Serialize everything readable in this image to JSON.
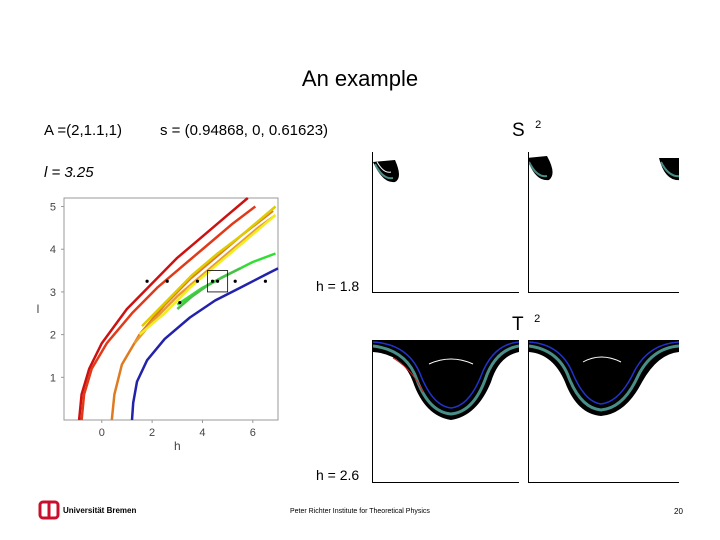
{
  "slide": {
    "title": "An example",
    "a_param": "A =(2,1.1,1)",
    "s_param": "s = (0.94868, 0, 0.61623)",
    "l_param": "l = 3.25",
    "s2_label": "S",
    "s2_sup": "2",
    "t2_label": "T",
    "t2_sup": "2",
    "h1_label": "h = 1.8",
    "h2_label": "h = 2.6",
    "footer_center": "Peter Richter Institute for Theoretical Physics",
    "page_number": "20",
    "logo_text": "Universität Bremen"
  },
  "chart_data": {
    "type": "line",
    "xlabel": "h",
    "ylabel": "l",
    "xlim": [
      -1.5,
      7
    ],
    "ylim": [
      0,
      5.2
    ],
    "x_ticks": [
      0,
      2,
      4,
      6
    ],
    "y_ticks": [
      1,
      2,
      3,
      4,
      5
    ],
    "x_tick_labels": [
      "0",
      "2",
      "4",
      "6"
    ],
    "y_tick_labels": [
      "1",
      "2",
      "3",
      "4",
      "5"
    ],
    "series": [
      {
        "color": "#cc1111",
        "points": [
          [
            -0.9,
            0
          ],
          [
            -0.8,
            0.6
          ],
          [
            -0.5,
            1.2
          ],
          [
            0,
            1.8
          ],
          [
            1,
            2.6
          ],
          [
            2,
            3.2
          ],
          [
            3,
            3.8
          ],
          [
            4,
            4.3
          ],
          [
            5,
            4.8
          ],
          [
            5.8,
            5.2
          ]
        ]
      },
      {
        "color": "#e03a1a",
        "points": [
          [
            -0.8,
            0
          ],
          [
            -0.7,
            0.6
          ],
          [
            -0.4,
            1.2
          ],
          [
            0.2,
            1.8
          ],
          [
            1.2,
            2.5
          ],
          [
            2.2,
            3.1
          ],
          [
            3.2,
            3.6
          ],
          [
            4.2,
            4.1
          ],
          [
            5.2,
            4.6
          ],
          [
            6.1,
            5
          ]
        ]
      },
      {
        "color": "#e07a20",
        "points": [
          [
            0.4,
            0
          ],
          [
            0.5,
            0.6
          ],
          [
            0.8,
            1.3
          ],
          [
            1.5,
            2
          ],
          [
            2.5,
            2.7
          ],
          [
            3.5,
            3.3
          ],
          [
            4.5,
            3.8
          ],
          [
            5.5,
            4.3
          ],
          [
            6.8,
            4.9
          ]
        ]
      },
      {
        "color": "#e89a30",
        "points": [
          [
            1.3,
            1.8
          ],
          [
            2,
            2.3
          ],
          [
            3,
            2.9
          ],
          [
            4,
            3.4
          ],
          [
            5,
            3.9
          ],
          [
            6.2,
            4.5
          ],
          [
            6.9,
            4.8
          ]
        ]
      },
      {
        "color": "#eeee22",
        "points": [
          [
            1.5,
            2
          ],
          [
            2.5,
            2.5
          ],
          [
            3.5,
            3.1
          ],
          [
            4.5,
            3.6
          ],
          [
            5.5,
            4.1
          ],
          [
            6.3,
            4.5
          ],
          [
            6.9,
            4.8
          ]
        ]
      },
      {
        "color": "#ddcc00",
        "points": [
          [
            1.6,
            2.2
          ],
          [
            2.6,
            2.8
          ],
          [
            3.6,
            3.4
          ],
          [
            4.6,
            3.9
          ],
          [
            5.5,
            4.3
          ],
          [
            6.3,
            4.7
          ],
          [
            6.9,
            5.0
          ]
        ]
      },
      {
        "color": "#33dd33",
        "points": [
          [
            3,
            2.7
          ],
          [
            3.5,
            2.9
          ],
          [
            4,
            3.1
          ],
          [
            4.5,
            3.25
          ],
          [
            5,
            3.4
          ],
          [
            5.5,
            3.55
          ],
          [
            6,
            3.7
          ],
          [
            6.9,
            3.9
          ]
        ]
      },
      {
        "color": "#4abf4a",
        "points": [
          [
            3,
            2.6
          ],
          [
            3.6,
            2.9
          ],
          [
            4.2,
            3.15
          ],
          [
            4.8,
            3.35
          ],
          [
            5.5,
            3.55
          ]
        ]
      },
      {
        "color": "#2222aa",
        "points": [
          [
            1.2,
            0
          ],
          [
            1.25,
            0.4
          ],
          [
            1.4,
            0.9
          ],
          [
            1.8,
            1.4
          ],
          [
            2.5,
            1.9
          ],
          [
            3.5,
            2.4
          ],
          [
            4.5,
            2.8
          ],
          [
            5.5,
            3.1
          ],
          [
            6.5,
            3.4
          ],
          [
            7,
            3.55
          ]
        ]
      }
    ],
    "dots": [
      [
        1.8,
        3.25
      ],
      [
        2.6,
        3.25
      ],
      [
        3.8,
        3.25
      ],
      [
        4.4,
        3.25
      ],
      [
        4.6,
        3.25
      ],
      [
        5.3,
        3.25
      ],
      [
        6.5,
        3.25
      ],
      [
        3.1,
        2.75
      ]
    ],
    "highlight_box": {
      "x": [
        4.2,
        5
      ],
      "y": [
        3.0,
        3.5
      ]
    }
  },
  "colors": {
    "map_fill": "#000000",
    "map_teal": "#4a8f87",
    "map_blue": "#2233cc",
    "map_red": "#cc2222",
    "logo_red": "#c8102e"
  }
}
